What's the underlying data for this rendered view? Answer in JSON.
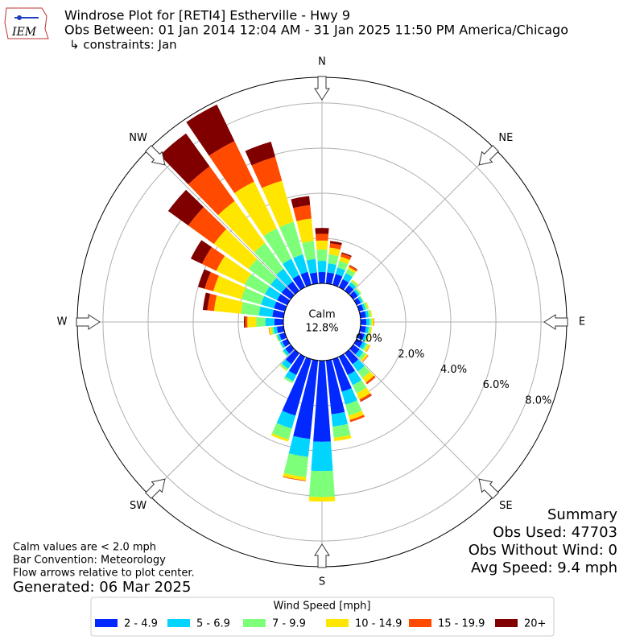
{
  "logo_text": "IEM",
  "chart_data": {
    "type": "windrose",
    "title": "Windrose Plot for [RETI4] Estherville - Hwy 9",
    "subtitle": "Obs Between: 01 Jan 2014 12:04 AM - 31 Jan 2025 11:50 PM America/Chicago",
    "constraints": "↳ constraints: Jan",
    "compass_labels": [
      "N",
      "NE",
      "E",
      "SE",
      "S",
      "SW",
      "W",
      "NW"
    ],
    "calm_label": "Calm",
    "calm": 12.8,
    "calm_value_label": "12.8%",
    "rlim": [
      0,
      9.14
    ],
    "rticks": [
      {
        "value": 0,
        "label": "0.0%"
      },
      {
        "value": 2,
        "label": "2.0%"
      },
      {
        "value": 4,
        "label": "4.0%"
      },
      {
        "value": 6,
        "label": "6.0%"
      },
      {
        "value": 8,
        "label": "8.0%"
      }
    ],
    "x": [
      0,
      10,
      20,
      30,
      40,
      50,
      60,
      70,
      80,
      90,
      100,
      110,
      120,
      130,
      140,
      150,
      160,
      170,
      180,
      190,
      200,
      210,
      220,
      230,
      240,
      250,
      260,
      270,
      280,
      290,
      300,
      310,
      320,
      330,
      340,
      350
    ],
    "legend_title": "Wind Speed [mph]",
    "series": [
      {
        "name": "2 - 4.9",
        "color": "#0028ff",
        "values": [
          0.5,
          0.5,
          0.5,
          0.4,
          0.3,
          0.25,
          0.2,
          0.2,
          0.25,
          0.25,
          0.25,
          0.25,
          0.3,
          0.35,
          0.6,
          0.9,
          1.5,
          2.4,
          3.6,
          3.5,
          2.6,
          0.9,
          0.6,
          0.3,
          0.25,
          0.25,
          0.3,
          0.4,
          0.5,
          0.5,
          0.5,
          0.5,
          0.5,
          0.6,
          0.6,
          0.5
        ]
      },
      {
        "name": "5 - 6.9",
        "color": "#00d4ff",
        "values": [
          0.5,
          0.4,
          0.3,
          0.3,
          0.15,
          0.1,
          0.1,
          0.1,
          0.12,
          0.15,
          0.12,
          0.1,
          0.15,
          0.2,
          0.4,
          0.5,
          0.6,
          0.55,
          1.3,
          0.8,
          0.6,
          0.3,
          0.25,
          0.12,
          0.1,
          0.1,
          0.15,
          0.4,
          0.6,
          0.6,
          0.6,
          0.6,
          0.7,
          0.8,
          0.8,
          0.6
        ]
      },
      {
        "name": "7 - 9.9",
        "color": "#7dff7a",
        "values": [
          0.5,
          0.4,
          0.3,
          0.2,
          0.1,
          0.08,
          0.05,
          0.1,
          0.1,
          0.1,
          0.1,
          0.08,
          0.1,
          0.15,
          0.35,
          0.4,
          0.5,
          0.5,
          1.15,
          0.9,
          0.5,
          0.1,
          0.1,
          0.05,
          0.03,
          0.05,
          0.1,
          0.4,
          0.8,
          0.9,
          1.0,
          1.2,
          1.4,
          1.5,
          1.5,
          0.8
        ]
      },
      {
        "name": "10 - 14.9",
        "color": "#ffe600",
        "values": [
          0.4,
          0.3,
          0.2,
          0.1,
          0.05,
          0.02,
          0,
          0.05,
          0.05,
          0.08,
          0.05,
          0.05,
          0.1,
          0.1,
          0.25,
          0.3,
          0.2,
          0.15,
          0.2,
          0.15,
          0.1,
          0,
          0.03,
          0,
          0,
          0.02,
          0.1,
          0.4,
          1.2,
          1.3,
          1.4,
          1.9,
          2.3,
          2.3,
          1.9,
          1.0
        ]
      },
      {
        "name": "15 - 19.9",
        "color": "#ff4a00",
        "values": [
          0.3,
          0.2,
          0.15,
          0.08,
          0,
          0,
          0,
          0,
          0,
          0.02,
          0,
          0,
          0.02,
          0.03,
          0.1,
          0.1,
          0.1,
          0,
          0,
          0.03,
          0,
          0,
          0,
          0,
          0,
          0,
          0.02,
          0.1,
          0.3,
          0.4,
          0.7,
          1.4,
          1.9,
          2.0,
          1.1,
          0.6
        ]
      },
      {
        "name": "20+",
        "color": "#800000",
        "values": [
          0.26,
          0.1,
          0.05,
          0.02,
          0,
          0,
          0,
          0,
          0,
          0,
          0,
          0,
          0,
          0,
          0,
          0.02,
          0,
          0,
          0,
          0,
          0,
          0,
          0,
          0,
          0,
          0,
          0,
          0.05,
          0.2,
          0.3,
          0.55,
          1.1,
          1.8,
          1.8,
          0.7,
          0.4
        ]
      }
    ]
  },
  "summary": [
    "Summary",
    "Obs Used: 47703",
    "Obs Without Wind: 0",
    "Avg Speed: 9.4 mph"
  ],
  "notes": [
    "Calm values are < 2.0 mph",
    "Bar Convention: Meteorology",
    "Flow arrows relative to plot center."
  ],
  "generated": "Generated: 06 Mar 2025"
}
